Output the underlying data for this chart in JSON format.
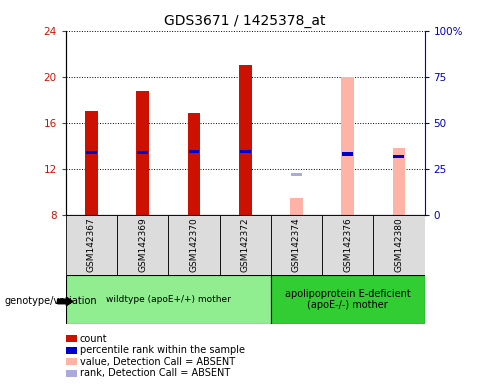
{
  "title": "GDS3671 / 1425378_at",
  "samples": [
    "GSM142367",
    "GSM142369",
    "GSM142370",
    "GSM142372",
    "GSM142374",
    "GSM142376",
    "GSM142380"
  ],
  "bar_values": [
    17.0,
    18.8,
    16.9,
    21.0,
    null,
    null,
    null
  ],
  "bar_absent_values": [
    null,
    null,
    null,
    null,
    9.5,
    20.0,
    13.8
  ],
  "percentile_rank": [
    13.4,
    13.4,
    13.5,
    13.5,
    null,
    13.3,
    13.1
  ],
  "percentile_rank_absent": [
    null,
    null,
    null,
    null,
    11.5,
    null,
    null
  ],
  "bar_color_present": "#CC1100",
  "bar_color_absent": "#FFB3A7",
  "rank_color_present": "#0000CC",
  "rank_color_absent": "#AAAADD",
  "ylim": [
    8,
    24
  ],
  "yticks": [
    8,
    12,
    16,
    20,
    24
  ],
  "y2lim": [
    0,
    100
  ],
  "y2ticks": [
    0,
    25,
    50,
    75,
    100
  ],
  "y2ticklabels": [
    "0",
    "25",
    "50",
    "75",
    "100%"
  ],
  "bar_width": 0.25,
  "group1_label": "wildtype (apoE+/+) mother",
  "group2_label": "apolipoprotein E-deficient\n(apoE-/-) mother",
  "group1_indices": [
    0,
    1,
    2,
    3
  ],
  "group2_indices": [
    4,
    5,
    6
  ],
  "group1_color": "#90EE90",
  "group2_color": "#32CD32",
  "legend_items": [
    {
      "label": "count",
      "color": "#CC1100"
    },
    {
      "label": "percentile rank within the sample",
      "color": "#0000CC"
    },
    {
      "label": "value, Detection Call = ABSENT",
      "color": "#FFB3A7"
    },
    {
      "label": "rank, Detection Call = ABSENT",
      "color": "#AAAADD"
    }
  ],
  "xlabel_fontsize": 6.5,
  "title_fontsize": 10,
  "tick_fontsize": 7.5,
  "left_ytick_color": "#CC1100",
  "right_ytick_color": "#0000BB",
  "bg_color": "#DCDCDC"
}
